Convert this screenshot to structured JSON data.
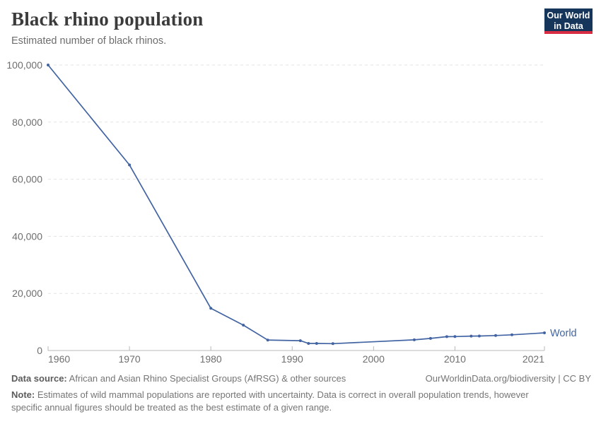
{
  "header": {
    "title": "Black rhino population",
    "subtitle": "Estimated number of black rhinos.",
    "logo": {
      "line1": "Our World",
      "line2": "in Data"
    }
  },
  "chart_data": {
    "type": "line",
    "title": "Black rhino population",
    "subtitle": "Estimated number of black rhinos.",
    "xlabel": "",
    "ylabel": "",
    "xlim": [
      1960,
      2021
    ],
    "ylim": [
      0,
      100000
    ],
    "xticks": [
      1960,
      1970,
      1980,
      1990,
      2000,
      2010,
      2021
    ],
    "yticks": [
      0,
      20000,
      40000,
      60000,
      80000,
      100000
    ],
    "grid": "horizontal-dashed",
    "legend": "label-at-line-end",
    "series": [
      {
        "name": "World",
        "color": "#4264a3",
        "points": [
          [
            1960,
            100000
          ],
          [
            1970,
            65000
          ],
          [
            1980,
            14785
          ],
          [
            1984,
            8889
          ],
          [
            1987,
            3665
          ],
          [
            1991,
            3450
          ],
          [
            1992,
            2475
          ],
          [
            1993,
            2475
          ],
          [
            1995,
            2410
          ],
          [
            2005,
            3726
          ],
          [
            2007,
            4240
          ],
          [
            2009,
            4840
          ],
          [
            2010,
            4880
          ],
          [
            2012,
            5055
          ],
          [
            2013,
            5081
          ],
          [
            2015,
            5250
          ],
          [
            2017,
            5500
          ],
          [
            2021,
            6195
          ]
        ]
      }
    ]
  },
  "footer": {
    "datasource_label": "Data source:",
    "datasource_text": "African and Asian Rhino Specialist Groups (AfRSG) & other sources",
    "citation": "OurWorldinData.org/biodiversity | CC BY",
    "note_label": "Note:",
    "note_text": "Estimates of wild mammal populations are reported with uncertainty. Data is correct in overall population trends, however specific annual figures should be treated as the best estimate of a given range."
  },
  "colors": {
    "accent_line": "#4264a3",
    "logo_navy": "#15355a",
    "logo_red": "#d92d43",
    "grid": "#e3e3e3",
    "axis": "#b8b8b8",
    "tick_text": "#6e6e6e",
    "title_text": "#3b3b3b",
    "subtitle_text": "#6d6d6d",
    "footer_text": "#757575"
  }
}
